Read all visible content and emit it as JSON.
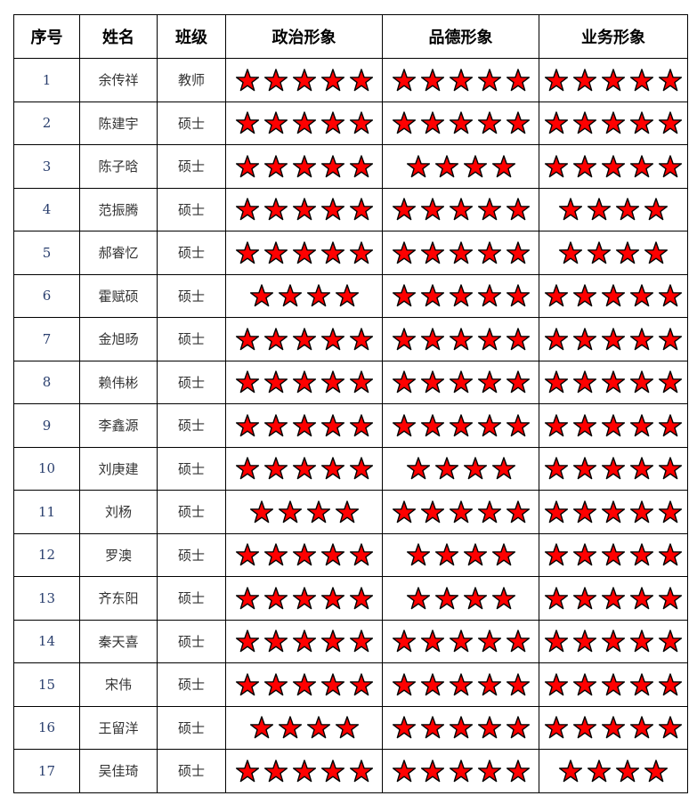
{
  "headers": [
    "序号",
    "姓名",
    "班级",
    "政治形象",
    "品德形象",
    "业务形象"
  ],
  "colors": {
    "star_fill": "#ff0000",
    "star_stroke": "#000000"
  },
  "rows": [
    {
      "no": "1",
      "name": "余传祥",
      "cls": "教师",
      "stars": [
        5,
        5,
        5
      ]
    },
    {
      "no": "2",
      "name": "陈建宇",
      "cls": "硕士",
      "stars": [
        5,
        5,
        5
      ]
    },
    {
      "no": "3",
      "name": "陈子晗",
      "cls": "硕士",
      "stars": [
        5,
        4,
        5
      ]
    },
    {
      "no": "4",
      "name": "范振腾",
      "cls": "硕士",
      "stars": [
        5,
        5,
        4
      ]
    },
    {
      "no": "5",
      "name": "郝睿忆",
      "cls": "硕士",
      "stars": [
        5,
        5,
        4
      ]
    },
    {
      "no": "6",
      "name": "霍赋硕",
      "cls": "硕士",
      "stars": [
        4,
        5,
        5
      ]
    },
    {
      "no": "7",
      "name": "金旭旸",
      "cls": "硕士",
      "stars": [
        5,
        5,
        5
      ]
    },
    {
      "no": "8",
      "name": "赖伟彬",
      "cls": "硕士",
      "stars": [
        5,
        5,
        5
      ]
    },
    {
      "no": "9",
      "name": "李鑫源",
      "cls": "硕士",
      "stars": [
        5,
        5,
        5
      ]
    },
    {
      "no": "10",
      "name": "刘庚建",
      "cls": "硕士",
      "stars": [
        5,
        4,
        5
      ]
    },
    {
      "no": "11",
      "name": "刘杨",
      "cls": "硕士",
      "stars": [
        4,
        5,
        5
      ]
    },
    {
      "no": "12",
      "name": "罗澳",
      "cls": "硕士",
      "stars": [
        5,
        4,
        5
      ]
    },
    {
      "no": "13",
      "name": "齐东阳",
      "cls": "硕士",
      "stars": [
        5,
        4,
        5
      ]
    },
    {
      "no": "14",
      "name": "秦天喜",
      "cls": "硕士",
      "stars": [
        5,
        5,
        5
      ]
    },
    {
      "no": "15",
      "name": "宋伟",
      "cls": "硕士",
      "stars": [
        5,
        5,
        5
      ]
    },
    {
      "no": "16",
      "name": "王留洋",
      "cls": "硕士",
      "stars": [
        4,
        5,
        5
      ]
    },
    {
      "no": "17",
      "name": "吴佳琦",
      "cls": "硕士",
      "stars": [
        5,
        5,
        4
      ]
    }
  ]
}
